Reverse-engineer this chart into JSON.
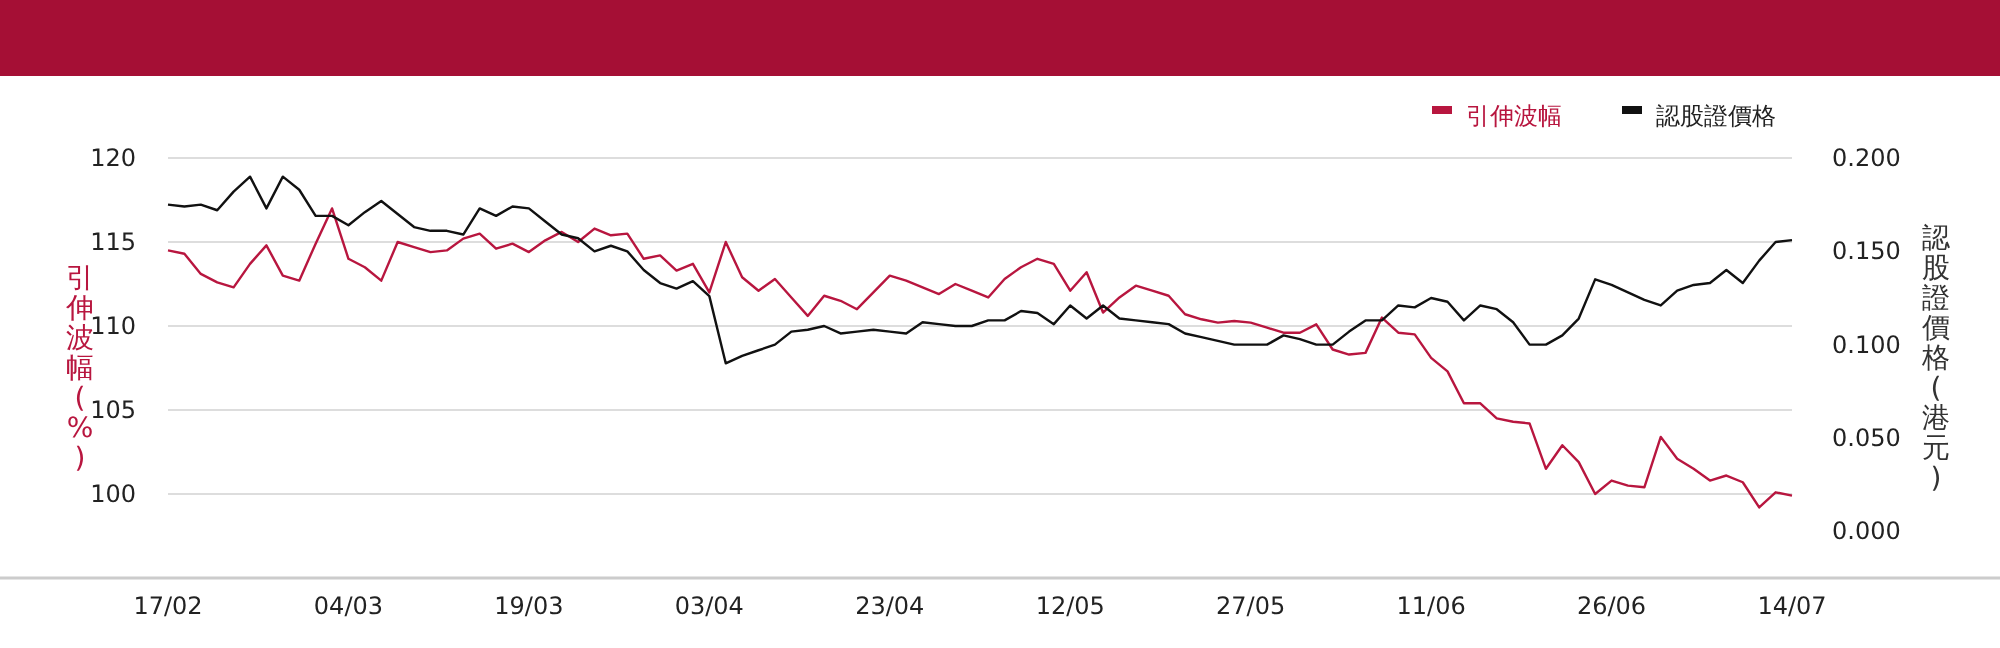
{
  "chart_data": {
    "type": "line",
    "categories": [
      "17/02",
      null,
      null,
      null,
      null,
      null,
      null,
      null,
      null,
      null,
      null,
      "04/03",
      null,
      null,
      null,
      null,
      null,
      null,
      null,
      null,
      null,
      null,
      "19/03",
      null,
      null,
      null,
      null,
      null,
      null,
      null,
      null,
      null,
      null,
      "03/04",
      null,
      null,
      null,
      null,
      null,
      null,
      null,
      null,
      null,
      null,
      "23/04",
      null,
      null,
      null,
      null,
      null,
      null,
      null,
      null,
      null,
      null,
      "12/05",
      null,
      null,
      null,
      null,
      null,
      null,
      null,
      null,
      null,
      null,
      "27/05",
      null,
      null,
      null,
      null,
      null,
      null,
      null,
      null,
      null,
      null,
      "11/06",
      null,
      null,
      null,
      null,
      null,
      null,
      null,
      null,
      null,
      null,
      "26/06",
      null,
      null,
      null,
      null,
      null,
      null,
      null,
      null,
      null,
      null,
      "14/07"
    ],
    "series": [
      {
        "name": "引伸波幅",
        "color": "#b8163f",
        "values": [
          114.5,
          114.3,
          113.1,
          112.6,
          112.3,
          113.7,
          114.8,
          113.0,
          112.7,
          114.9,
          117.0,
          114.0,
          113.5,
          112.7,
          115.0,
          114.7,
          114.4,
          114.5,
          115.2,
          115.5,
          114.6,
          114.9,
          114.4,
          115.1,
          115.6,
          115.0,
          115.8,
          115.4,
          115.5,
          114.0,
          114.2,
          113.3,
          113.7,
          112.0,
          115.0,
          112.9,
          112.1,
          112.8,
          111.7,
          110.6,
          111.8,
          111.5,
          111.0,
          112.0,
          113.0,
          112.7,
          112.3,
          111.9,
          112.5,
          112.1,
          111.7,
          112.8,
          113.5,
          114.0,
          113.7,
          112.1,
          113.2,
          110.8,
          111.7,
          112.4,
          112.1,
          111.8,
          110.7,
          110.4,
          110.2,
          110.3,
          110.2,
          109.9,
          109.6,
          109.6,
          110.1,
          108.6,
          108.3,
          108.4,
          110.5,
          109.6,
          109.5,
          108.1,
          107.3,
          105.4,
          105.4,
          104.5,
          104.3,
          104.2,
          101.5,
          102.9,
          101.9,
          100.0,
          100.8,
          100.5,
          100.4,
          103.4,
          102.1,
          101.5,
          100.8,
          101.1,
          100.7,
          99.2,
          100.1,
          99.9
        ]
      },
      {
        "name": "認股證價格",
        "color": "#111111",
        "axis": "y2",
        "values": [
          0.175,
          0.174,
          0.175,
          0.172,
          0.182,
          0.19,
          0.173,
          0.19,
          0.183,
          0.169,
          0.169,
          0.164,
          0.171,
          0.177,
          0.17,
          0.163,
          0.161,
          0.161,
          0.159,
          0.173,
          0.169,
          0.174,
          0.173,
          0.166,
          0.159,
          0.157,
          0.15,
          0.153,
          0.15,
          0.14,
          0.133,
          0.13,
          0.134,
          0.126,
          0.09,
          0.094,
          0.097,
          0.1,
          0.107,
          0.108,
          0.11,
          0.106,
          0.107,
          0.108,
          0.107,
          0.106,
          0.112,
          0.111,
          0.11,
          0.11,
          0.113,
          0.113,
          0.118,
          0.117,
          0.111,
          0.121,
          0.114,
          0.121,
          0.114,
          0.113,
          0.112,
          0.111,
          0.106,
          0.104,
          0.102,
          0.1,
          0.1,
          0.1,
          0.105,
          0.103,
          0.1,
          0.1,
          0.107,
          0.113,
          0.113,
          0.121,
          0.12,
          0.125,
          0.123,
          0.113,
          0.121,
          0.119,
          0.112,
          0.1,
          0.1,
          0.105,
          0.114,
          0.135,
          0.132,
          0.128,
          0.124,
          0.121,
          0.129,
          0.132,
          0.133,
          0.14,
          0.133,
          0.145,
          0.155,
          0.156
        ]
      }
    ],
    "ylabel": "引伸波幅(%)",
    "y2label": "認股證價格(港元)",
    "ylim": [
      95,
      120
    ],
    "yticks": [
      100,
      105,
      110,
      115,
      120
    ],
    "y2lim": [
      -0.025,
      0.2
    ],
    "y2ticks": [
      {
        "value": 0,
        "label": "0.000"
      },
      {
        "value": 0.05,
        "label": "0.050"
      },
      {
        "value": 0.1,
        "label": "0.100"
      },
      {
        "value": 0.15,
        "label": "0.150"
      },
      {
        "value": 0.2,
        "label": "0.200"
      }
    ],
    "grid": "y",
    "legend": "top right"
  }
}
